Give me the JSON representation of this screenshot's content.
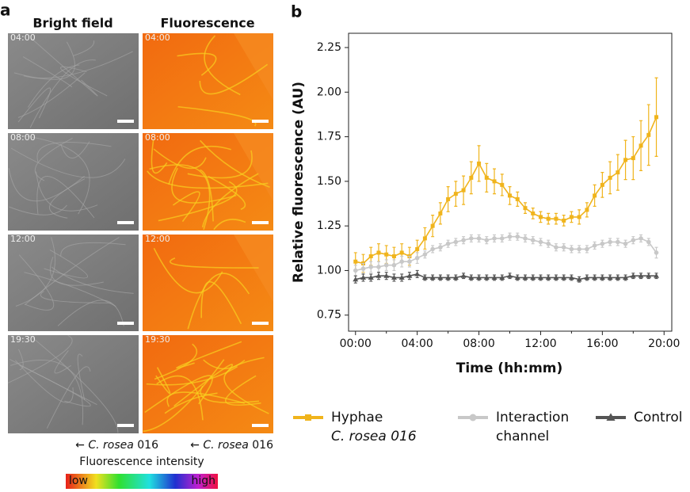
{
  "panel_a": {
    "label": "a",
    "columns": [
      "Bright field",
      "Fluorescence"
    ],
    "times": [
      "04:00",
      "08:00",
      "12:00",
      "19:30"
    ],
    "caption_arrow": "←",
    "caption_species": "C. rosea",
    "caption_strain": "016",
    "colorbar_title": "Fluorescence intensity",
    "colorbar_low": "low",
    "colorbar_high": "high"
  },
  "chart_data": {
    "type": "line",
    "panel_label": "b",
    "x_label": "Time (hh:mm)",
    "y_label": "Relative fluorescence (AU)",
    "x": [
      0,
      0.5,
      1,
      1.5,
      2,
      2.5,
      3,
      3.5,
      4,
      4.5,
      5,
      5.5,
      6,
      6.5,
      7,
      7.5,
      8,
      8.5,
      9,
      9.5,
      10,
      10.5,
      11,
      11.5,
      12,
      12.5,
      13,
      13.5,
      14,
      14.5,
      15,
      15.5,
      16,
      16.5,
      17,
      17.5,
      18,
      18.5,
      19,
      19.5
    ],
    "xlim": [
      -0.45,
      20.5
    ],
    "xticks": [
      {
        "value": 0,
        "label": "00:00"
      },
      {
        "value": 4,
        "label": "04:00"
      },
      {
        "value": 8,
        "label": "08:00"
      },
      {
        "value": 12,
        "label": "12:00"
      },
      {
        "value": 16,
        "label": "16:00"
      },
      {
        "value": 20,
        "label": "20:00"
      }
    ],
    "xminorticks": [
      2,
      6,
      10,
      14,
      18
    ],
    "ylim": [
      0.66,
      2.33
    ],
    "yticks": [
      0.75,
      {
        "value": 1,
        "label": "1.00"
      },
      1.25,
      {
        "value": 1.5,
        "label": "1.50"
      },
      1.75,
      {
        "value": 2,
        "label": "2.00"
      },
      2.25
    ],
    "series": [
      {
        "name": "Hyphae",
        "subname": "C. rosea 016",
        "color": "#f0b41c",
        "marker": "square",
        "values": [
          1.05,
          1.04,
          1.08,
          1.1,
          1.09,
          1.08,
          1.1,
          1.08,
          1.12,
          1.18,
          1.25,
          1.32,
          1.4,
          1.43,
          1.45,
          1.52,
          1.6,
          1.52,
          1.5,
          1.48,
          1.42,
          1.4,
          1.35,
          1.32,
          1.3,
          1.29,
          1.29,
          1.28,
          1.3,
          1.3,
          1.34,
          1.42,
          1.48,
          1.52,
          1.55,
          1.62,
          1.63,
          1.7,
          1.76,
          1.86
        ],
        "errors": [
          0.05,
          0.05,
          0.05,
          0.05,
          0.05,
          0.05,
          0.05,
          0.05,
          0.05,
          0.06,
          0.06,
          0.06,
          0.07,
          0.07,
          0.08,
          0.09,
          0.1,
          0.08,
          0.07,
          0.06,
          0.05,
          0.04,
          0.03,
          0.03,
          0.03,
          0.03,
          0.03,
          0.03,
          0.03,
          0.04,
          0.04,
          0.06,
          0.07,
          0.09,
          0.1,
          0.11,
          0.12,
          0.14,
          0.17,
          0.22
        ]
      },
      {
        "name": "Interaction",
        "subname": "channel",
        "color": "#c8c8c8",
        "marker": "circle",
        "values": [
          1.0,
          1.01,
          1.02,
          1.02,
          1.03,
          1.03,
          1.05,
          1.05,
          1.07,
          1.09,
          1.12,
          1.13,
          1.15,
          1.16,
          1.17,
          1.18,
          1.18,
          1.17,
          1.18,
          1.18,
          1.19,
          1.19,
          1.18,
          1.17,
          1.16,
          1.15,
          1.13,
          1.13,
          1.12,
          1.12,
          1.12,
          1.14,
          1.15,
          1.16,
          1.16,
          1.15,
          1.17,
          1.18,
          1.16,
          1.1
        ],
        "errors": [
          0.03,
          0.03,
          0.03,
          0.03,
          0.03,
          0.03,
          0.03,
          0.03,
          0.03,
          0.02,
          0.02,
          0.02,
          0.02,
          0.02,
          0.02,
          0.02,
          0.02,
          0.02,
          0.02,
          0.02,
          0.02,
          0.02,
          0.02,
          0.02,
          0.02,
          0.02,
          0.02,
          0.02,
          0.02,
          0.02,
          0.02,
          0.02,
          0.02,
          0.02,
          0.02,
          0.02,
          0.02,
          0.02,
          0.02,
          0.03
        ]
      },
      {
        "name": "Control",
        "color": "#555555",
        "marker": "triangle",
        "values": [
          0.95,
          0.96,
          0.96,
          0.97,
          0.97,
          0.96,
          0.96,
          0.97,
          0.98,
          0.96,
          0.96,
          0.96,
          0.96,
          0.96,
          0.97,
          0.96,
          0.96,
          0.96,
          0.96,
          0.96,
          0.97,
          0.96,
          0.96,
          0.96,
          0.96,
          0.96,
          0.96,
          0.96,
          0.96,
          0.95,
          0.96,
          0.96,
          0.96,
          0.96,
          0.96,
          0.96,
          0.97,
          0.97,
          0.97,
          0.97
        ],
        "errors": [
          0.02,
          0.02,
          0.02,
          0.02,
          0.02,
          0.02,
          0.02,
          0.02,
          0.02,
          0.015,
          0.015,
          0.015,
          0.015,
          0.015,
          0.015,
          0.015,
          0.015,
          0.015,
          0.015,
          0.015,
          0.015,
          0.015,
          0.015,
          0.015,
          0.015,
          0.015,
          0.015,
          0.015,
          0.015,
          0.015,
          0.015,
          0.015,
          0.015,
          0.015,
          0.015,
          0.015,
          0.015,
          0.015,
          0.015,
          0.015
        ]
      }
    ]
  }
}
